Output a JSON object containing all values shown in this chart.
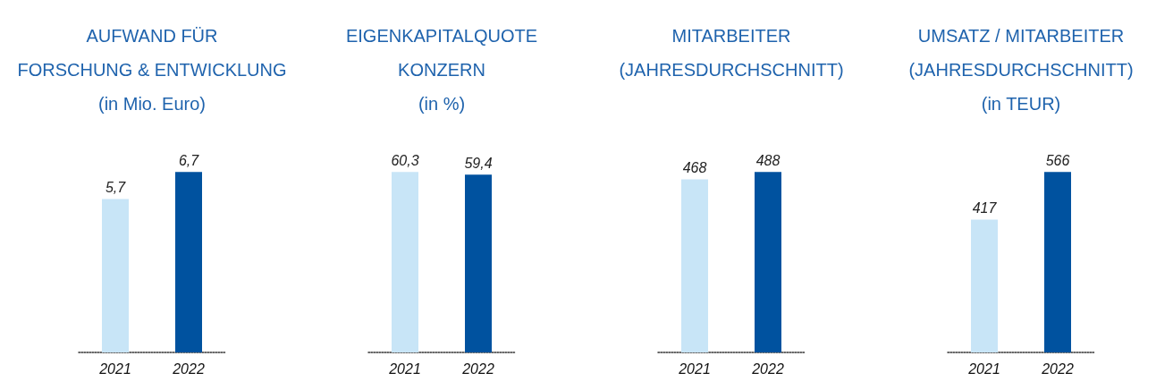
{
  "chart_data": [
    {
      "type": "bar",
      "title": "AUFWAND FÜR\nFORSCHUNG & ENTWICKLUNG",
      "subtitle": "(in Mio. Euro)",
      "categories": [
        "2021",
        "2022"
      ],
      "values": [
        5.7,
        6.7
      ],
      "colors": [
        "#c8e5f7",
        "#00529f"
      ],
      "value_labels": [
        "5,7",
        "6,7"
      ],
      "grid": false
    },
    {
      "type": "bar",
      "title": "EIGENKAPITALQUOTE\nKONZERN",
      "subtitle": "(in %)",
      "categories": [
        "2021",
        "2022"
      ],
      "values": [
        60.3,
        59.4
      ],
      "colors": [
        "#c8e5f7",
        "#00529f"
      ],
      "value_labels": [
        "60,3",
        "59,4"
      ],
      "grid": false
    },
    {
      "type": "bar",
      "title": "MITARBEITER\n(JAHRESDURCHSCHNITT)",
      "categories": [
        "2021",
        "2022"
      ],
      "values": [
        468,
        488
      ],
      "colors": [
        "#c8e5f7",
        "#00529f"
      ],
      "data_labels": true,
      "grid": false
    },
    {
      "type": "bar",
      "title": "UMSATZ / MITARBEITER\n(JAHRESDURCHSCHNITT)",
      "subtitle": "(in TEUR)",
      "categories": [
        "2021",
        "2022"
      ],
      "values": [
        417,
        566
      ],
      "colors": [
        "#c8e5f7",
        "#00529f"
      ],
      "data_labels": true,
      "grid": false
    }
  ]
}
